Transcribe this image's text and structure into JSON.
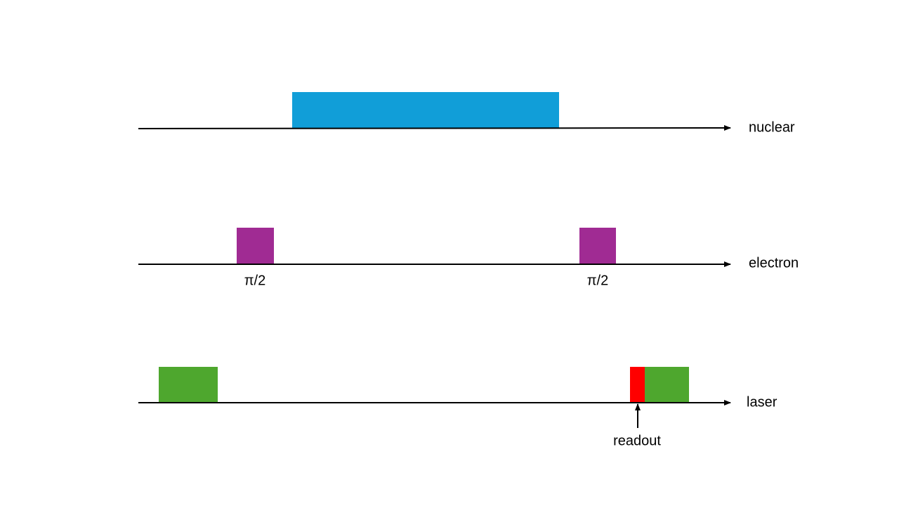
{
  "channels": [
    {
      "label": "nuclear"
    },
    {
      "label": "electron",
      "pulses": [
        {
          "label": "π/2"
        },
        {
          "label": "π/2"
        }
      ]
    },
    {
      "label": "laser"
    }
  ],
  "annotations": [
    {
      "label": "readout"
    }
  ]
}
